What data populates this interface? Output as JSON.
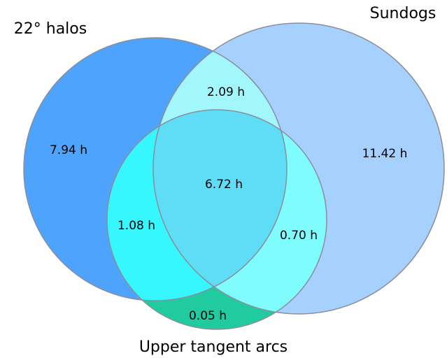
{
  "chart_data": {
    "type": "venn",
    "sets": [
      {
        "name": "22° halos",
        "color": "#4ea3fc"
      },
      {
        "name": "Sundogs",
        "color": "#a6d0fd"
      },
      {
        "name": "Upper tangent arcs",
        "color": "#20cba0"
      }
    ],
    "regions": [
      {
        "sets": [
          0
        ],
        "value": 7.94,
        "value_label": "7.94 h",
        "color": "#4ea3fc"
      },
      {
        "sets": [
          1
        ],
        "value": 11.42,
        "value_label": "11.42 h",
        "color": "#a6d0fd"
      },
      {
        "sets": [
          2
        ],
        "value": 0.05,
        "value_label": "0.05 h",
        "color": "#20cba0"
      },
      {
        "sets": [
          0,
          1
        ],
        "value": 2.09,
        "value_label": "2.09 h",
        "color": "#a2f7fd"
      },
      {
        "sets": [
          0,
          2
        ],
        "value": 1.08,
        "value_label": "1.08 h",
        "color": "#36f6fe"
      },
      {
        "sets": [
          1,
          2
        ],
        "value": 0.7,
        "value_label": "0.70 h",
        "color": "#7ffcfe"
      },
      {
        "sets": [
          0,
          1,
          2
        ],
        "value": 6.72,
        "value_label": "6.72 h",
        "color": "#5fddf7"
      }
    ]
  }
}
